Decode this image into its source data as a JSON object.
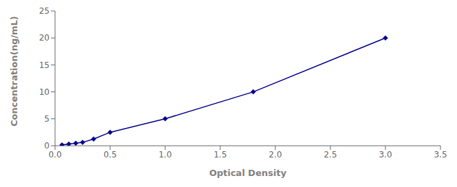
{
  "chart_data": {
    "type": "line",
    "x": [
      0.063,
      0.125,
      0.188,
      0.25,
      0.35,
      0.5,
      1.0,
      1.8,
      3.0
    ],
    "values": [
      0.156,
      0.312,
      0.469,
      0.625,
      1.25,
      2.5,
      5.0,
      10.0,
      20.0
    ],
    "color": "#00008B",
    "marker": "diamond",
    "line_style": "solid",
    "xlabel": "Optical Density",
    "ylabel": "Concentration(ng/mL)",
    "xlim": [
      0,
      3.5
    ],
    "ylim": [
      0,
      25
    ],
    "xticks": [
      {
        "value": 0,
        "label": "0.0"
      },
      0.5,
      {
        "value": 1,
        "label": "1.0"
      },
      1.5,
      {
        "value": 2,
        "label": "2.0"
      },
      2.5,
      {
        "value": 3,
        "label": "3.0"
      },
      3.5
    ],
    "yticks": [
      0,
      5,
      10,
      15,
      20,
      25
    ],
    "grid": false
  }
}
